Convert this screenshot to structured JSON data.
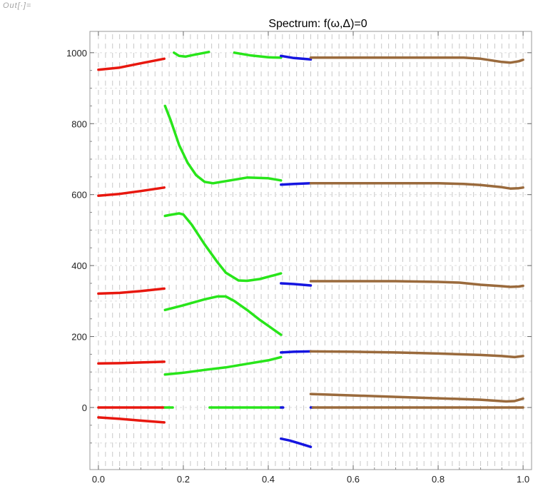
{
  "cell_label": "Out[∙]=",
  "chart_data": {
    "type": "line",
    "title": "Spectrum: f(ω,Δ)=0",
    "xlabel": "",
    "ylabel": "",
    "xlim": [
      -0.02,
      1.02
    ],
    "ylim": [
      -175,
      1060
    ],
    "xticks": [
      0.0,
      0.2,
      0.4,
      0.6,
      0.8,
      1.0
    ],
    "xtick_labels": [
      "0.0",
      "0.2",
      "0.4",
      "0.6",
      "0.8",
      "1.0"
    ],
    "yticks": [
      0,
      200,
      400,
      600,
      800,
      1000
    ],
    "ytick_labels": [
      "0",
      "200",
      "400",
      "600",
      "800",
      "1000"
    ],
    "grid": "dashed",
    "colors": {
      "red": "#e8170e",
      "green": "#28e51a",
      "blue": "#1515e0",
      "brown": "#9a6a3c",
      "frame": "#999999",
      "grid": "#c8c8c8"
    },
    "series": [
      {
        "color": "red",
        "points": [
          [
            0.0,
            952
          ],
          [
            0.05,
            958
          ],
          [
            0.1,
            970
          ],
          [
            0.155,
            983
          ]
        ]
      },
      {
        "color": "red",
        "points": [
          [
            0.0,
            597
          ],
          [
            0.05,
            602
          ],
          [
            0.1,
            610
          ],
          [
            0.155,
            620
          ]
        ]
      },
      {
        "color": "red",
        "points": [
          [
            0.0,
            321
          ],
          [
            0.05,
            323
          ],
          [
            0.1,
            328
          ],
          [
            0.155,
            335
          ]
        ]
      },
      {
        "color": "red",
        "points": [
          [
            0.0,
            124
          ],
          [
            0.05,
            125
          ],
          [
            0.1,
            127
          ],
          [
            0.155,
            129
          ]
        ]
      },
      {
        "color": "red",
        "points": [
          [
            0.0,
            0
          ],
          [
            0.155,
            0
          ]
        ]
      },
      {
        "color": "red",
        "points": [
          [
            0.0,
            -28
          ],
          [
            0.05,
            -32
          ],
          [
            0.1,
            -37
          ],
          [
            0.155,
            -42
          ]
        ]
      },
      {
        "color": "green",
        "points": [
          [
            0.157,
            0
          ],
          [
            0.175,
            0
          ]
        ]
      },
      {
        "color": "green",
        "points": [
          [
            0.262,
            0
          ],
          [
            0.43,
            0
          ]
        ]
      },
      {
        "color": "green",
        "points": [
          [
            0.178,
            1000
          ],
          [
            0.19,
            991
          ],
          [
            0.205,
            989
          ],
          [
            0.225,
            994
          ],
          [
            0.26,
            1002
          ]
        ]
      },
      {
        "color": "green",
        "points": [
          [
            0.32,
            1000
          ],
          [
            0.36,
            992
          ],
          [
            0.4,
            987
          ],
          [
            0.43,
            986
          ]
        ]
      },
      {
        "color": "green",
        "points": [
          [
            0.157,
            850
          ],
          [
            0.17,
            810
          ],
          [
            0.19,
            740
          ],
          [
            0.21,
            690
          ],
          [
            0.23,
            655
          ],
          [
            0.25,
            636
          ],
          [
            0.27,
            632
          ],
          [
            0.3,
            638
          ],
          [
            0.35,
            648
          ],
          [
            0.4,
            646
          ],
          [
            0.43,
            640
          ]
        ]
      },
      {
        "color": "green",
        "points": [
          [
            0.157,
            540
          ],
          [
            0.17,
            543
          ],
          [
            0.19,
            547
          ],
          [
            0.2,
            544
          ],
          [
            0.22,
            515
          ],
          [
            0.25,
            460
          ],
          [
            0.28,
            410
          ],
          [
            0.3,
            380
          ],
          [
            0.33,
            358
          ],
          [
            0.35,
            357
          ],
          [
            0.38,
            362
          ],
          [
            0.43,
            378
          ]
        ]
      },
      {
        "color": "green",
        "points": [
          [
            0.157,
            275
          ],
          [
            0.2,
            288
          ],
          [
            0.25,
            305
          ],
          [
            0.28,
            313
          ],
          [
            0.3,
            313
          ],
          [
            0.32,
            300
          ],
          [
            0.35,
            275
          ],
          [
            0.38,
            247
          ],
          [
            0.43,
            205
          ]
        ]
      },
      {
        "color": "green",
        "points": [
          [
            0.157,
            93
          ],
          [
            0.2,
            98
          ],
          [
            0.25,
            106
          ],
          [
            0.3,
            113
          ],
          [
            0.35,
            123
          ],
          [
            0.4,
            133
          ],
          [
            0.43,
            142
          ]
        ]
      },
      {
        "color": "blue",
        "points": [
          [
            0.43,
            991
          ],
          [
            0.46,
            985
          ],
          [
            0.5,
            981
          ]
        ]
      },
      {
        "color": "blue",
        "points": [
          [
            0.43,
            628
          ],
          [
            0.46,
            630
          ],
          [
            0.5,
            632
          ]
        ]
      },
      {
        "color": "blue",
        "points": [
          [
            0.43,
            350
          ],
          [
            0.46,
            348
          ],
          [
            0.5,
            344
          ]
        ]
      },
      {
        "color": "blue",
        "points": [
          [
            0.43,
            155
          ],
          [
            0.46,
            157
          ],
          [
            0.5,
            158
          ]
        ]
      },
      {
        "color": "blue",
        "points": [
          [
            0.43,
            0
          ],
          [
            0.435,
            0
          ]
        ]
      },
      {
        "color": "blue",
        "points": [
          [
            0.5,
            0
          ],
          [
            0.505,
            0
          ]
        ]
      },
      {
        "color": "blue",
        "points": [
          [
            0.43,
            -88
          ],
          [
            0.45,
            -93
          ],
          [
            0.47,
            -100
          ],
          [
            0.5,
            -111
          ]
        ]
      },
      {
        "color": "brown",
        "points": [
          [
            0.5,
            986
          ],
          [
            0.6,
            986
          ],
          [
            0.7,
            986
          ],
          [
            0.8,
            986
          ],
          [
            0.86,
            986
          ],
          [
            0.9,
            983
          ],
          [
            0.95,
            974
          ],
          [
            0.97,
            972
          ],
          [
            0.99,
            976
          ],
          [
            1.0,
            980
          ]
        ]
      },
      {
        "color": "brown",
        "points": [
          [
            0.5,
            632
          ],
          [
            0.6,
            632
          ],
          [
            0.7,
            632
          ],
          [
            0.8,
            632
          ],
          [
            0.86,
            630
          ],
          [
            0.9,
            627
          ],
          [
            0.95,
            621
          ],
          [
            0.97,
            617
          ],
          [
            0.99,
            618
          ],
          [
            1.0,
            620
          ]
        ]
      },
      {
        "color": "brown",
        "points": [
          [
            0.5,
            356
          ],
          [
            0.6,
            356
          ],
          [
            0.7,
            356
          ],
          [
            0.8,
            354
          ],
          [
            0.85,
            352
          ],
          [
            0.9,
            346
          ],
          [
            0.95,
            342
          ],
          [
            0.97,
            340
          ],
          [
            0.99,
            341
          ],
          [
            1.0,
            343
          ]
        ]
      },
      {
        "color": "brown",
        "points": [
          [
            0.5,
            158
          ],
          [
            0.6,
            157
          ],
          [
            0.7,
            155
          ],
          [
            0.8,
            152
          ],
          [
            0.9,
            148
          ],
          [
            0.95,
            145
          ],
          [
            0.98,
            142
          ],
          [
            1.0,
            145
          ]
        ]
      },
      {
        "color": "brown",
        "points": [
          [
            0.5,
            38
          ],
          [
            0.6,
            34
          ],
          [
            0.7,
            30
          ],
          [
            0.8,
            26
          ],
          [
            0.9,
            22
          ],
          [
            0.96,
            17
          ],
          [
            0.98,
            18
          ],
          [
            1.0,
            25
          ]
        ]
      },
      {
        "color": "brown",
        "points": [
          [
            0.505,
            0
          ],
          [
            1.0,
            0
          ]
        ]
      }
    ]
  }
}
